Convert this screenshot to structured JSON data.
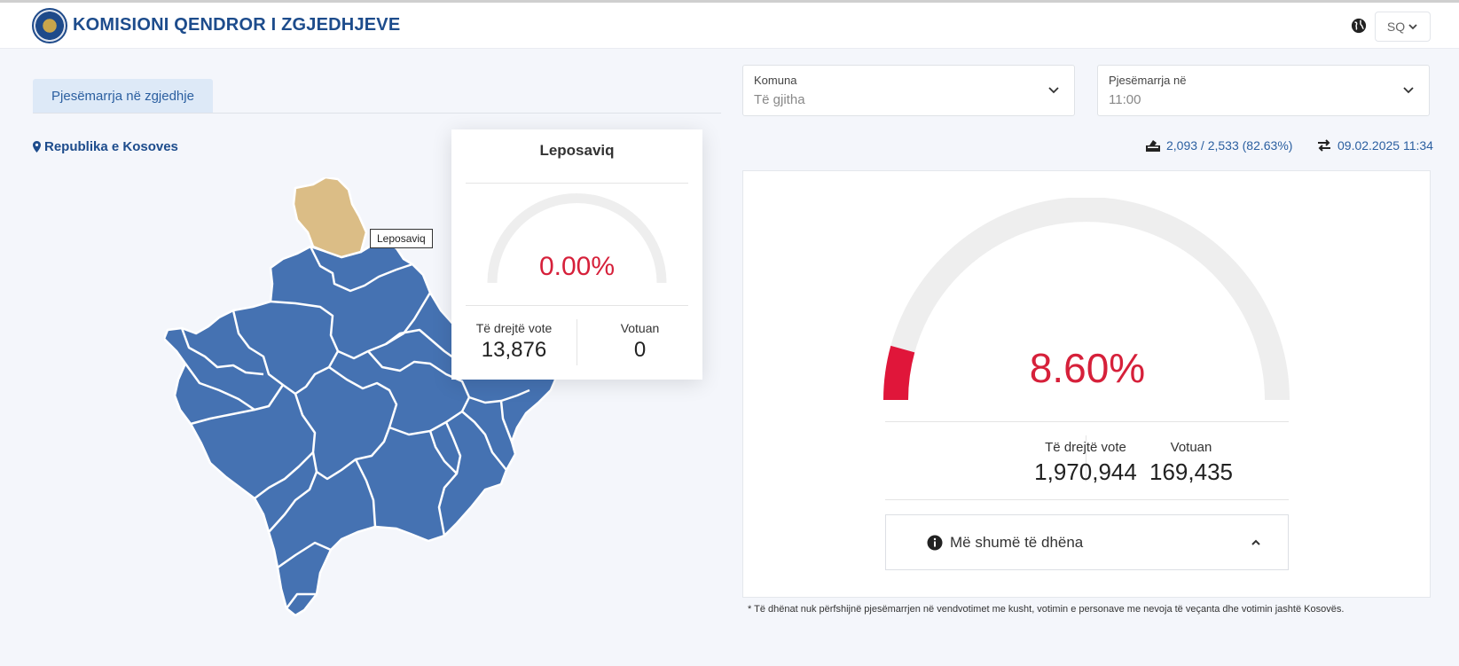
{
  "header": {
    "title": "KOMISIONI QENDROR I ZGJEDHJEVE",
    "language": "SQ"
  },
  "tabs": [
    {
      "label": "Pjesëmarrja në zgjedhje",
      "active": true
    }
  ],
  "filters": {
    "municipality": {
      "label": "Komuna",
      "value": "Të gjitha"
    },
    "turnout_at": {
      "label": "Pjesëmarrja në",
      "value": "11:00"
    }
  },
  "location": "Republika e Kosoves",
  "stats": {
    "stations": "2,093 / 2,533 (82.63%)",
    "updated": "09.02.2025 11:34"
  },
  "map": {
    "highlighted": "Leposaviq",
    "tooltip": "Leposaviq",
    "colors": {
      "region": "#4572b2",
      "highlight": "#dbbd86"
    }
  },
  "popup": {
    "title": "Leposaviq",
    "percent_label": "0.00%",
    "percent_value": 0.0,
    "eligible_label": "Të drejtë vote",
    "eligible": "13,876",
    "voted_label": "Votuan",
    "voted": "0"
  },
  "summary": {
    "percent_label": "8.60%",
    "percent_value": 8.6,
    "eligible_label": "Të drejtë vote",
    "eligible": "1,970,944",
    "voted_label": "Votuan",
    "voted": "169,435",
    "more_label": "Më shumë të dhëna"
  },
  "footnote": "* Të dhënat nuk përfshijnë pjesëmarrjen në vendvotimet me kusht, votimin e personave me nevoja të veçanta dhe votimin jashtë Kosovës.",
  "colors": {
    "brand": "#1d4c8c",
    "gauge_fill": "#e0163a",
    "gauge_track": "#eeeeee",
    "percent_text": "#d6203a"
  }
}
